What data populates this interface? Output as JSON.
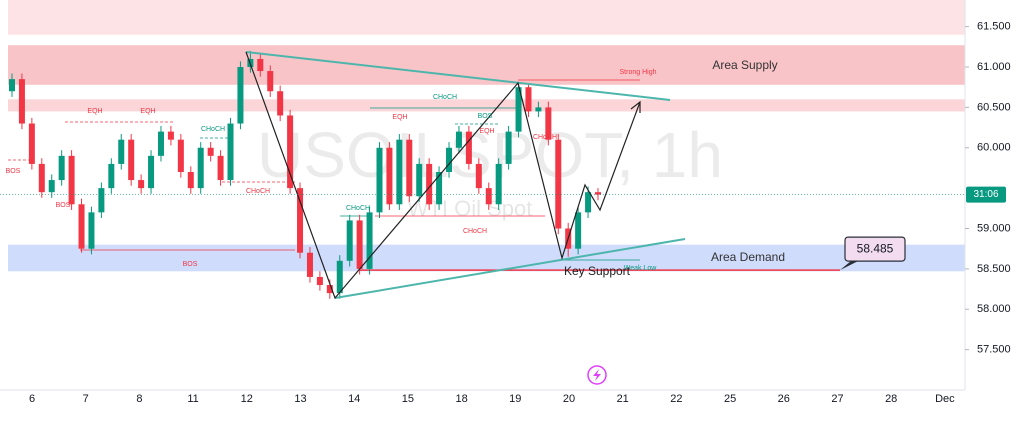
{
  "chart_data": {
    "type": "candlestick",
    "title": "USOILSPOT, 1h",
    "subtitle": "WTI Oil Spot",
    "categories": [
      "6",
      "7",
      "8",
      "11",
      "12",
      "13",
      "14",
      "15",
      "18",
      "19",
      "20",
      "21",
      "22",
      "25",
      "26",
      "27",
      "28",
      "Dec"
    ],
    "open": [
      60.7,
      60.85,
      60.3,
      59.8,
      59.45,
      59.6,
      59.9,
      59.3,
      58.75,
      59.2,
      59.5,
      59.8,
      60.1,
      59.6,
      59.5,
      59.9,
      60.2,
      60.1,
      59.7,
      59.5,
      60.0,
      59.9,
      59.6,
      60.3,
      61.0,
      61.1,
      60.95,
      60.7,
      60.4,
      59.5,
      58.7,
      58.4,
      58.3,
      58.2,
      58.6,
      59.1,
      58.5,
      59.2,
      60.0,
      59.3,
      60.1,
      59.4,
      59.8,
      59.3,
      59.7,
      60.0,
      60.2,
      59.8,
      59.5,
      59.3,
      59.8,
      60.2,
      60.75,
      60.45,
      60.5,
      60.1,
      59.0,
      58.75,
      59.2,
      59.45
    ],
    "high": [
      60.92,
      60.92,
      60.37,
      59.87,
      59.67,
      59.97,
      59.97,
      59.37,
      59.27,
      59.57,
      59.87,
      60.17,
      60.17,
      59.67,
      59.97,
      60.27,
      60.27,
      60.17,
      59.77,
      60.07,
      60.07,
      59.97,
      60.37,
      61.07,
      61.2,
      61.17,
      61.02,
      60.77,
      60.47,
      59.57,
      58.77,
      58.47,
      58.37,
      58.67,
      59.17,
      59.17,
      59.27,
      60.07,
      60.07,
      60.17,
      60.17,
      59.87,
      59.87,
      59.77,
      60.07,
      60.27,
      60.27,
      59.87,
      59.57,
      59.87,
      60.27,
      60.8,
      60.78,
      60.57,
      60.57,
      60.17,
      59.07,
      59.27,
      59.52,
      59.5
    ],
    "low": [
      60.63,
      60.23,
      59.73,
      59.38,
      59.38,
      59.53,
      59.23,
      58.7,
      58.68,
      59.13,
      59.43,
      59.73,
      59.53,
      59.43,
      59.43,
      59.83,
      60.03,
      59.63,
      59.43,
      59.43,
      59.83,
      59.53,
      59.53,
      60.23,
      60.93,
      60.88,
      60.63,
      60.33,
      59.43,
      58.63,
      58.33,
      58.23,
      58.13,
      58.13,
      58.53,
      58.43,
      58.43,
      59.13,
      59.23,
      59.23,
      59.33,
      59.33,
      59.23,
      59.23,
      59.63,
      59.93,
      59.73,
      59.43,
      59.23,
      59.23,
      59.73,
      60.13,
      60.38,
      60.38,
      60.03,
      58.93,
      58.65,
      58.68,
      59.13,
      59.35
    ],
    "close": [
      60.85,
      60.3,
      59.8,
      59.45,
      59.6,
      59.9,
      59.3,
      58.75,
      59.2,
      59.5,
      59.8,
      60.1,
      59.6,
      59.5,
      59.9,
      60.2,
      60.1,
      59.7,
      59.5,
      60.0,
      59.9,
      59.6,
      60.3,
      61.0,
      61.1,
      60.95,
      60.7,
      60.4,
      59.5,
      58.7,
      58.4,
      58.3,
      58.2,
      58.6,
      59.1,
      58.5,
      59.2,
      60.0,
      59.3,
      60.1,
      59.4,
      59.8,
      59.3,
      59.7,
      60.0,
      60.2,
      59.8,
      59.5,
      59.3,
      59.8,
      60.2,
      60.75,
      60.45,
      60.5,
      60.1,
      59.0,
      58.75,
      59.2,
      59.45,
      59.42
    ],
    "up_color": "#089981",
    "down_color": "#f23645",
    "ylim": [
      57.0,
      61.83
    ],
    "yticks": [
      {
        "value": 57.5,
        "label": "57.500"
      },
      {
        "value": 58.0,
        "label": "58.000"
      },
      {
        "value": 58.5,
        "label": "58.500"
      },
      {
        "value": 59.0,
        "label": "59.000"
      },
      {
        "value": 60.0,
        "label": "60.000"
      },
      {
        "value": 60.5,
        "label": "60.500"
      },
      {
        "value": 61.0,
        "label": "61.000"
      },
      {
        "value": 61.5,
        "label": "61.500"
      }
    ],
    "grid": false,
    "zones": [
      {
        "name": "Area Supply",
        "low": 60.78,
        "high": 61.27,
        "color": "#f9c4c8"
      },
      {
        "name": "Area Demand",
        "low": 58.47,
        "high": 58.8,
        "color": "#cfdcfb"
      }
    ],
    "bands": [
      {
        "low": 61.4,
        "high": 61.83,
        "color": "#fde3e5"
      },
      {
        "low": 60.45,
        "high": 60.6,
        "color": "#fbd5d8"
      }
    ],
    "key_support": {
      "name": "Key Support",
      "value": 58.485,
      "color": "#f23645"
    },
    "countdown": "31:06",
    "annotations": [
      "EQH",
      "EQH",
      "CHoCH",
      "BOS",
      "BOS",
      "CHoCH",
      "BOS",
      "CHoCH",
      "BOS",
      "EQH",
      "EQH",
      "CHoCH",
      "CHoCH",
      "CHoCH",
      "Strong High",
      "Weak Low"
    ]
  }
}
